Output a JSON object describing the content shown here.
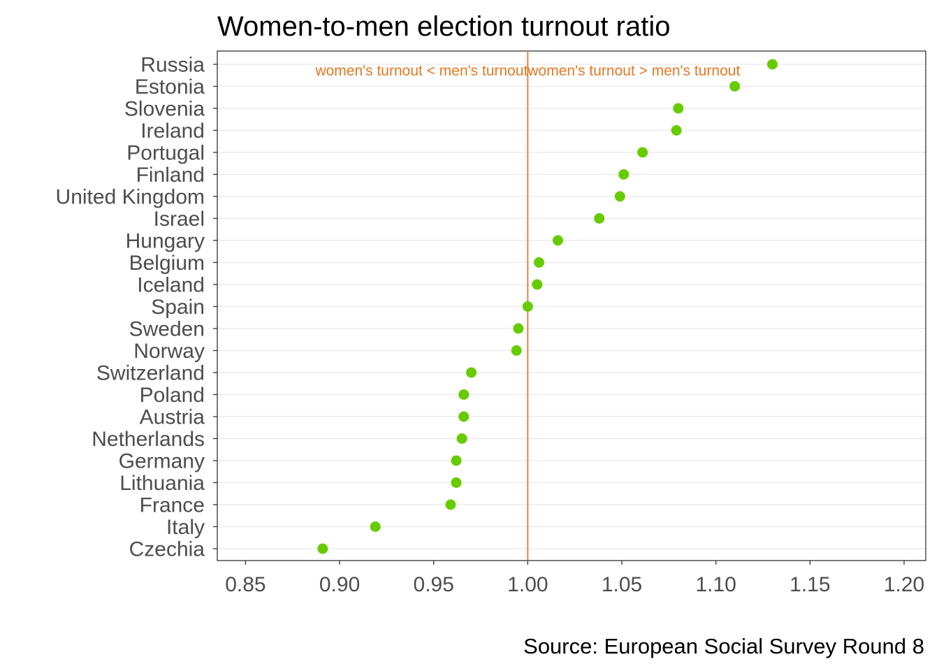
{
  "chart_data": {
    "type": "scatter",
    "title": "Women-to-men election turnout ratio",
    "caption": "Source: European Social Survey Round 8",
    "xlabel": "",
    "ylabel": "",
    "xlim": [
      0.835,
      1.2115
    ],
    "xticks": [
      0.85,
      0.9,
      0.95,
      1.0,
      1.05,
      1.1,
      1.15,
      1.2
    ],
    "xtick_labels": [
      "0.85",
      "0.90",
      "0.95",
      "1.00",
      "1.05",
      "1.10",
      "1.15",
      "1.20"
    ],
    "grid": "horizontal major lines only",
    "point_color": "#66cc00",
    "reference_line": {
      "x": 1.0,
      "color": "#e87722"
    },
    "annotations": [
      {
        "text": "women's turnout < men's turnout",
        "anchor": "end",
        "x": 1.0,
        "color": "#e87722"
      },
      {
        "text": "women's turnout > men's turnout",
        "anchor": "start",
        "x": 1.0,
        "color": "#e87722"
      }
    ],
    "categories": [
      "Russia",
      "Estonia",
      "Slovenia",
      "Ireland",
      "Portugal",
      "Finland",
      "United Kingdom",
      "Israel",
      "Hungary",
      "Belgium",
      "Iceland",
      "Spain",
      "Sweden",
      "Norway",
      "Switzerland",
      "Poland",
      "Austria",
      "Netherlands",
      "Germany",
      "Lithuania",
      "France",
      "Italy",
      "Czechia"
    ],
    "values": [
      1.13,
      1.11,
      1.08,
      1.079,
      1.061,
      1.051,
      1.049,
      1.038,
      1.016,
      1.006,
      1.005,
      1.0,
      0.995,
      0.994,
      0.97,
      0.966,
      0.966,
      0.965,
      0.962,
      0.962,
      0.959,
      0.919,
      0.891
    ]
  }
}
